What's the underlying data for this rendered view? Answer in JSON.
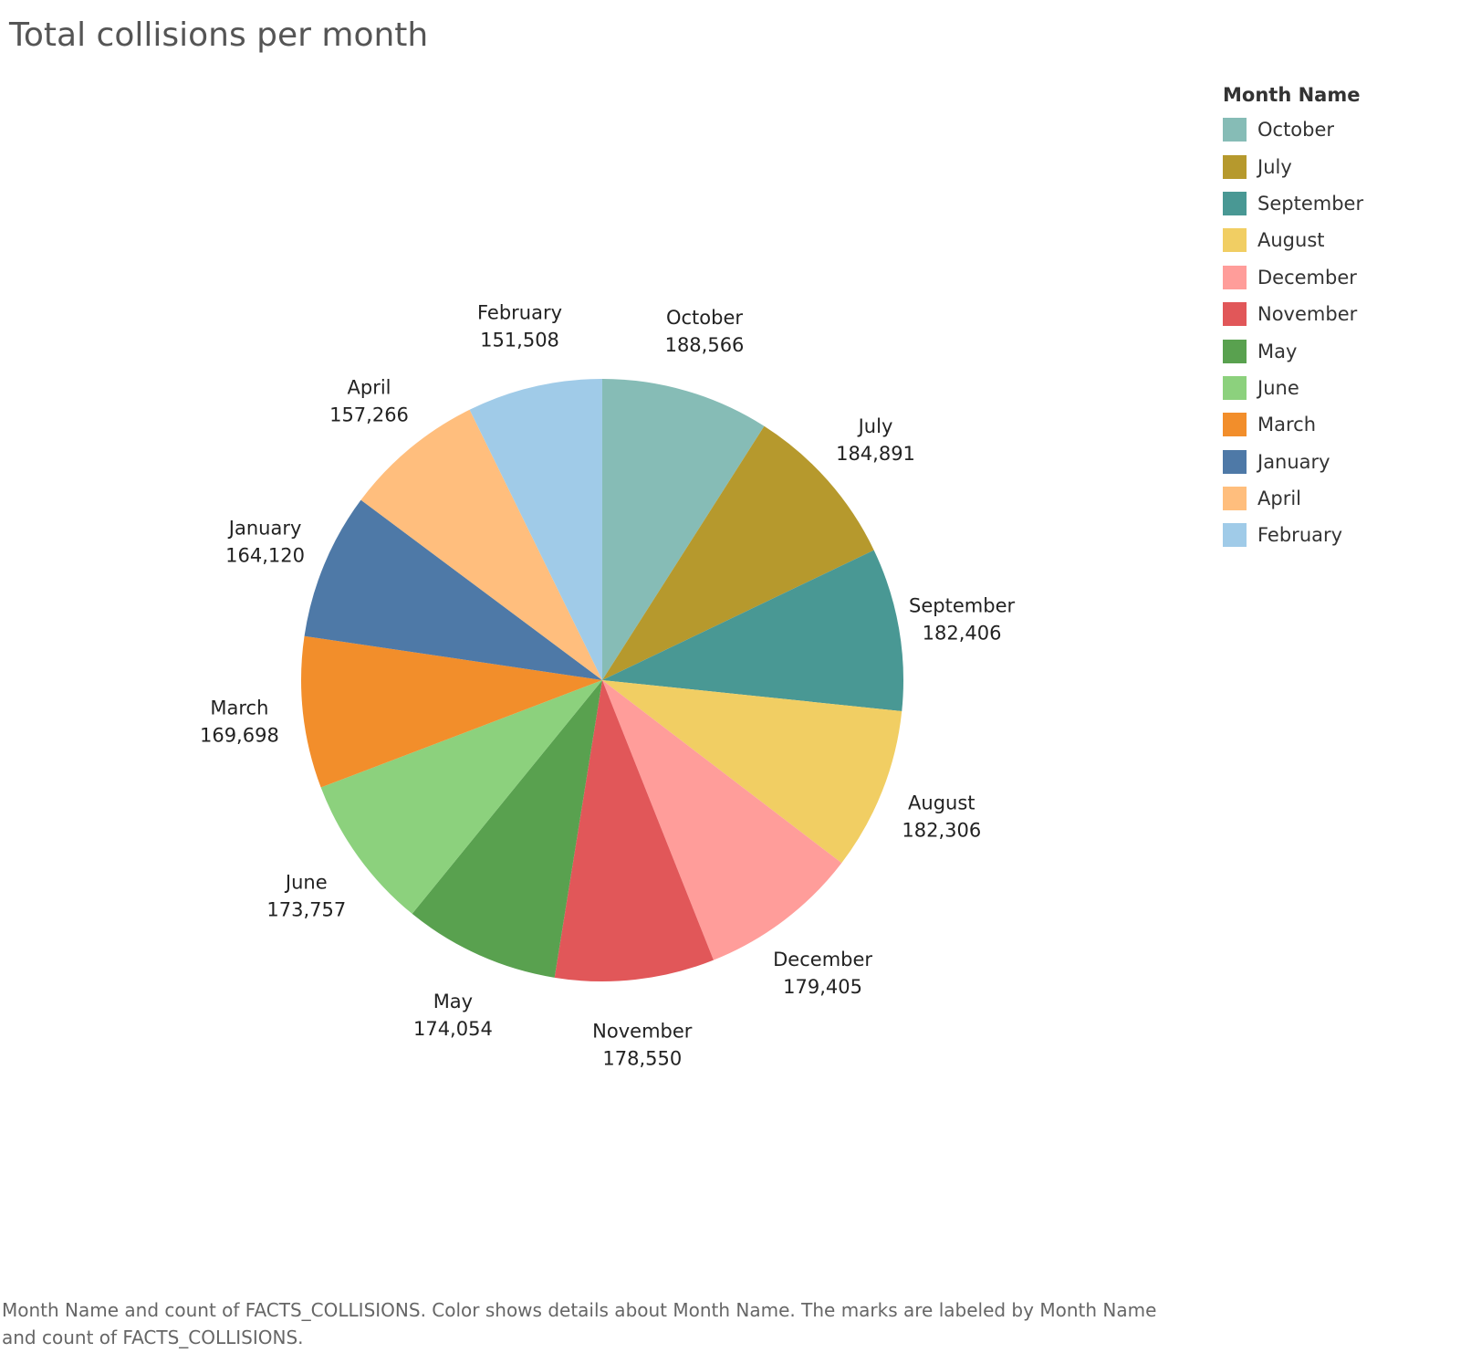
{
  "title": "Total collisions per month",
  "caption": "Month Name and count of FACTS_COLLISIONS.  Color shows details about Month Name.  The marks are labeled by Month Name and count of FACTS_COLLISIONS.",
  "legend": {
    "title": "Month Name",
    "placement": "top-right"
  },
  "chart_data": {
    "type": "pie",
    "title": "Total collisions per month",
    "legend_title": "Month Name",
    "slices": [
      {
        "label": "October",
        "value": 188566,
        "value_text": "188,566",
        "color": "#86BCB6"
      },
      {
        "label": "July",
        "value": 184891,
        "value_text": "184,891",
        "color": "#B6992D"
      },
      {
        "label": "September",
        "value": 182406,
        "value_text": "182,406",
        "color": "#499894"
      },
      {
        "label": "August",
        "value": 182306,
        "value_text": "182,306",
        "color": "#F1CE63"
      },
      {
        "label": "December",
        "value": 179405,
        "value_text": "179,405",
        "color": "#FF9D9A"
      },
      {
        "label": "November",
        "value": 178550,
        "value_text": "178,550",
        "color": "#E15759"
      },
      {
        "label": "May",
        "value": 174054,
        "value_text": "174,054",
        "color": "#59A14F"
      },
      {
        "label": "June",
        "value": 173757,
        "value_text": "173,757",
        "color": "#8CD17D"
      },
      {
        "label": "March",
        "value": 169698,
        "value_text": "169,698",
        "color": "#F28E2B"
      },
      {
        "label": "January",
        "value": 164120,
        "value_text": "164,120",
        "color": "#4E79A7"
      },
      {
        "label": "April",
        "value": 157266,
        "value_text": "157,266",
        "color": "#FFBE7D"
      },
      {
        "label": "February",
        "value": 151508,
        "value_text": "151,508",
        "color": "#A0CBE8"
      }
    ]
  }
}
